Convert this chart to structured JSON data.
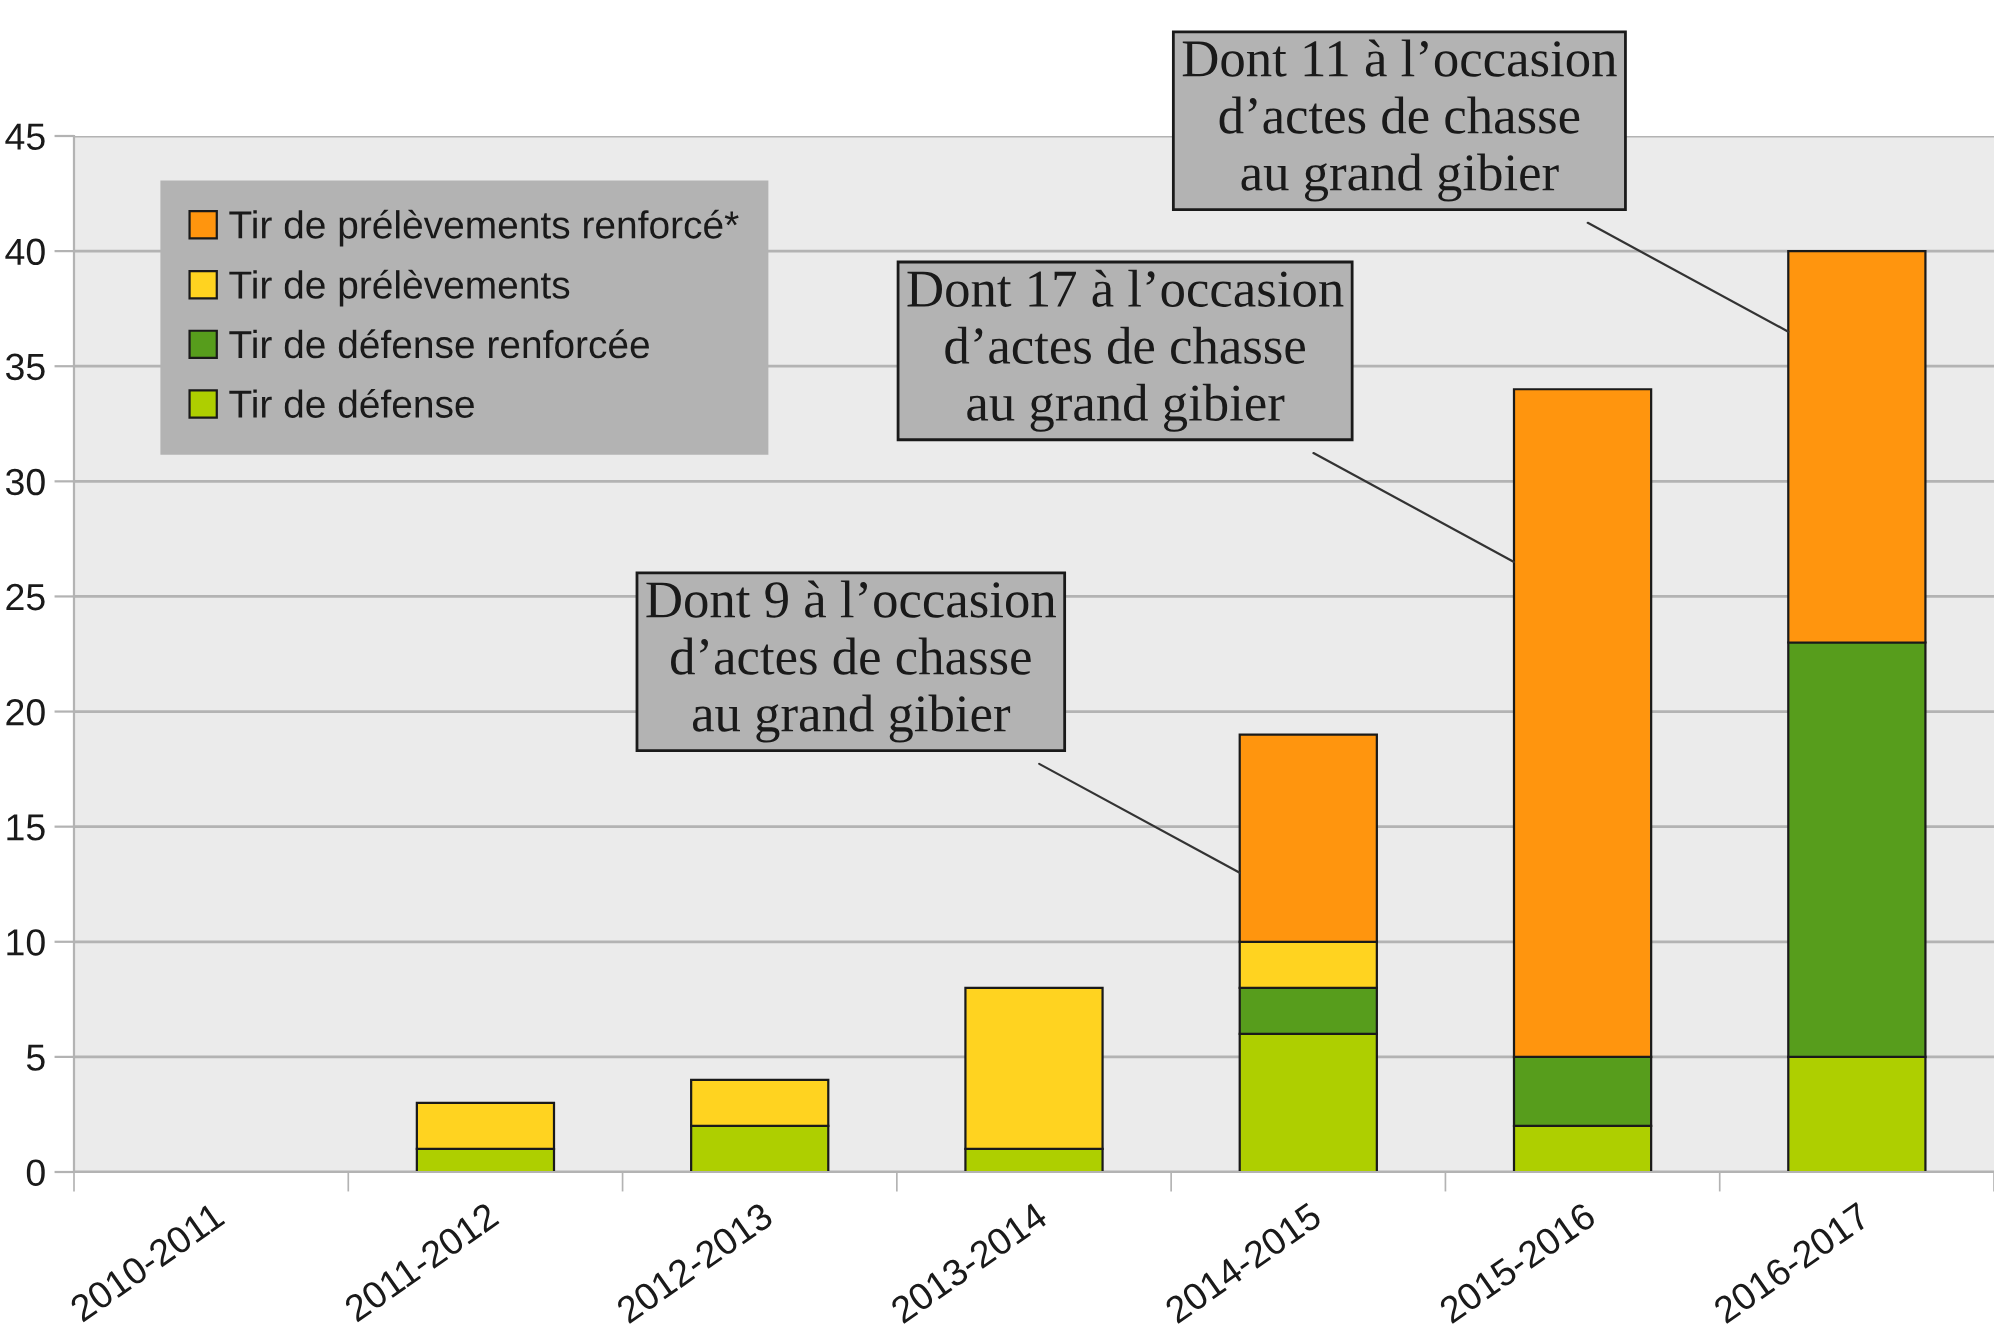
{
  "chart_data": {
    "type": "bar",
    "stacked": true,
    "categories": [
      "2010-2011",
      "2011-2012",
      "2012-2013",
      "2013-2014",
      "2014-2015",
      "2015-2016",
      "2016-2017"
    ],
    "series": [
      {
        "name": "Tir de défense",
        "color": "#aecf00",
        "values": [
          0,
          1,
          2,
          1,
          6,
          2,
          5
        ]
      },
      {
        "name": "Tir de défense renforcée",
        "color": "#579d1c",
        "values": [
          0,
          0,
          0,
          0,
          2,
          3,
          18
        ]
      },
      {
        "name": "Tir de prélèvements",
        "color": "#ffd320",
        "values": [
          0,
          2,
          2,
          7,
          2,
          0,
          0
        ]
      },
      {
        "name": "Tir de prélèvements renforcé*",
        "color": "#ff950e",
        "values": [
          0,
          0,
          0,
          0,
          9,
          29,
          17
        ]
      }
    ],
    "ylim": [
      0,
      45
    ],
    "yticks": [
      0,
      5,
      10,
      15,
      20,
      25,
      30,
      35,
      40,
      45
    ],
    "grid": "y",
    "legend": "top left",
    "annotations": [
      {
        "text": "Dont 9 à l’occasion\nd’actes de chasse\nau grand gibier",
        "x": "2014-2015",
        "y": 13
      },
      {
        "text": "Dont 17 à l’occasion\nd’actes de chasse\nau grand gibier",
        "x": "2015-2016",
        "y": 26.5
      },
      {
        "text": "Dont 11 à l’occasion\nd’actes de chasse\nau grand gibier",
        "x": "2016-2017",
        "y": 36.5
      }
    ]
  }
}
